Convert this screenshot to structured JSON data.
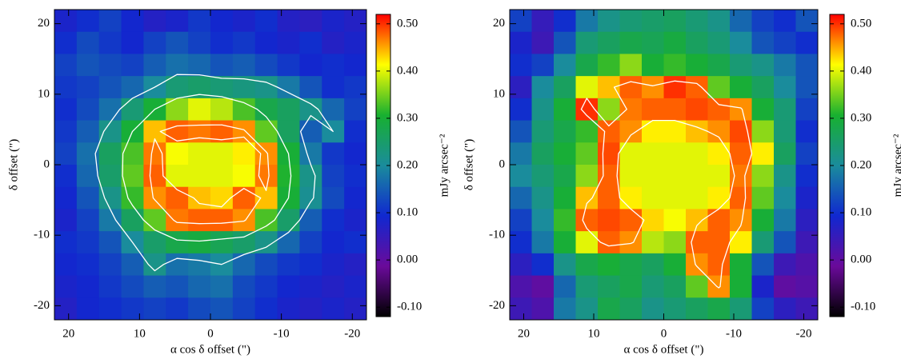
{
  "chart_data": [
    {
      "type": "heatmap",
      "xlabel": "α cos δ offset (\")",
      "ylabel": "δ offset (\")",
      "xlim": [
        22,
        -22
      ],
      "ylim": [
        -22,
        22
      ],
      "xticks": [
        20,
        10,
        0,
        -10,
        -20
      ],
      "yticks": [
        -20,
        -10,
        0,
        10,
        20
      ],
      "zlim": [
        -0.12,
        0.52
      ],
      "colormap": [
        "#000000",
        "#6a0a9a",
        "#1028d0",
        "#1a8c9c",
        "#18b030",
        "#ffff00",
        "#ff0000"
      ],
      "colorbar_label": "mJy arcsec⁻²",
      "colorbar_ticks": [
        {
          "value": -0.1,
          "label": "-0.10"
        },
        {
          "value": 0,
          "label": "0.00"
        },
        {
          "value": 0.1,
          "label": "0.10"
        },
        {
          "value": 0.2,
          "label": "0.20"
        },
        {
          "value": 0.3,
          "label": "0.30"
        },
        {
          "value": 0.4,
          "label": "0.40"
        },
        {
          "value": 0.5,
          "label": "0.50"
        }
      ],
      "contour_levels": [
        0.2,
        0.3,
        0.45
      ],
      "contour_color": "#ffffff",
      "z": [
        [
          0.08,
          0.1,
          0.12,
          0.09,
          0.07,
          0.08,
          0.11,
          0.09,
          0.08,
          0.1,
          0.07,
          0.06,
          0.08,
          0.07
        ],
        [
          0.1,
          0.13,
          0.11,
          0.09,
          0.12,
          0.14,
          0.12,
          0.1,
          0.11,
          0.09,
          0.08,
          0.1,
          0.07,
          0.08
        ],
        [
          0.12,
          0.14,
          0.13,
          0.12,
          0.15,
          0.17,
          0.16,
          0.14,
          0.15,
          0.13,
          0.11,
          0.09,
          0.1,
          0.09
        ],
        [
          0.11,
          0.12,
          0.14,
          0.16,
          0.2,
          0.24,
          0.25,
          0.24,
          0.23,
          0.22,
          0.18,
          0.14,
          0.1,
          0.11
        ],
        [
          0.1,
          0.13,
          0.17,
          0.24,
          0.3,
          0.36,
          0.4,
          0.38,
          0.33,
          0.28,
          0.26,
          0.22,
          0.16,
          0.12
        ],
        [
          0.11,
          0.15,
          0.22,
          0.3,
          0.44,
          0.48,
          0.47,
          0.48,
          0.46,
          0.34,
          0.26,
          0.15,
          0.2,
          0.1
        ],
        [
          0.12,
          0.17,
          0.26,
          0.33,
          0.47,
          0.41,
          0.4,
          0.4,
          0.42,
          0.46,
          0.3,
          0.18,
          0.11,
          0.09
        ],
        [
          0.1,
          0.16,
          0.25,
          0.34,
          0.48,
          0.4,
          0.4,
          0.4,
          0.41,
          0.47,
          0.31,
          0.22,
          0.12,
          0.1
        ],
        [
          0.09,
          0.14,
          0.22,
          0.32,
          0.46,
          0.48,
          0.44,
          0.43,
          0.48,
          0.44,
          0.3,
          0.21,
          0.13,
          0.09
        ],
        [
          0.08,
          0.12,
          0.18,
          0.26,
          0.34,
          0.47,
          0.48,
          0.48,
          0.46,
          0.33,
          0.25,
          0.15,
          0.1,
          0.08
        ],
        [
          0.1,
          0.11,
          0.14,
          0.2,
          0.25,
          0.28,
          0.29,
          0.27,
          0.25,
          0.22,
          0.16,
          0.12,
          0.09,
          0.1
        ],
        [
          0.09,
          0.1,
          0.12,
          0.15,
          0.22,
          0.17,
          0.18,
          0.2,
          0.16,
          0.13,
          0.11,
          0.1,
          0.08,
          0.07
        ],
        [
          0.08,
          0.09,
          0.11,
          0.13,
          0.15,
          0.14,
          0.16,
          0.17,
          0.13,
          0.11,
          0.09,
          0.08,
          0.07,
          0.08
        ],
        [
          0.07,
          0.09,
          0.1,
          0.11,
          0.12,
          0.11,
          0.13,
          0.14,
          0.12,
          0.1,
          0.08,
          0.07,
          0.08,
          0.07
        ]
      ]
    },
    {
      "type": "heatmap",
      "xlabel": "α cos δ offset (\")",
      "ylabel": "δ offset (\")",
      "xlim": [
        22,
        -22
      ],
      "ylim": [
        -22,
        22
      ],
      "xticks": [
        20,
        10,
        0,
        -10,
        -20
      ],
      "yticks": [
        -20,
        -10,
        0,
        10,
        20
      ],
      "zlim": [
        -0.12,
        0.52
      ],
      "colormap": [
        "#000000",
        "#6a0a9a",
        "#1028d0",
        "#1a8c9c",
        "#18b030",
        "#ffff00",
        "#ff0000"
      ],
      "colorbar_label": "mJy arcsec⁻²",
      "colorbar_ticks": [
        {
          "value": -0.1,
          "label": "-0.10"
        },
        {
          "value": 0,
          "label": "0.00"
        },
        {
          "value": 0.1,
          "label": "0.10"
        },
        {
          "value": 0.2,
          "label": "0.20"
        },
        {
          "value": 0.3,
          "label": "0.30"
        },
        {
          "value": 0.4,
          "label": "0.40"
        },
        {
          "value": 0.5,
          "label": "0.50"
        }
      ],
      "contour_levels": [
        0.45
      ],
      "contour_color": "#ffffff",
      "z": [
        [
          0.12,
          0.05,
          0.1,
          0.18,
          0.22,
          0.24,
          0.25,
          0.26,
          0.24,
          0.22,
          0.16,
          0.12,
          0.1,
          0.14
        ],
        [
          0.08,
          0.04,
          0.14,
          0.24,
          0.26,
          0.28,
          0.27,
          0.29,
          0.26,
          0.24,
          0.2,
          0.14,
          0.12,
          0.1
        ],
        [
          0.1,
          0.12,
          0.2,
          0.28,
          0.32,
          0.36,
          0.3,
          0.32,
          0.3,
          0.28,
          0.24,
          0.22,
          0.18,
          0.14
        ],
        [
          0.06,
          0.2,
          0.26,
          0.4,
          0.44,
          0.48,
          0.46,
          0.5,
          0.48,
          0.34,
          0.3,
          0.26,
          0.2,
          0.14
        ],
        [
          0.1,
          0.22,
          0.3,
          0.5,
          0.36,
          0.47,
          0.48,
          0.48,
          0.49,
          0.48,
          0.46,
          0.3,
          0.24,
          0.12
        ],
        [
          0.14,
          0.24,
          0.28,
          0.32,
          0.48,
          0.46,
          0.42,
          0.42,
          0.44,
          0.46,
          0.49,
          0.36,
          0.24,
          0.1
        ],
        [
          0.18,
          0.26,
          0.3,
          0.34,
          0.49,
          0.4,
          0.4,
          0.4,
          0.4,
          0.42,
          0.48,
          0.42,
          0.26,
          0.12
        ],
        [
          0.2,
          0.24,
          0.28,
          0.36,
          0.48,
          0.4,
          0.4,
          0.4,
          0.4,
          0.4,
          0.47,
          0.36,
          0.22,
          0.1
        ],
        [
          0.16,
          0.22,
          0.3,
          0.44,
          0.48,
          0.42,
          0.4,
          0.4,
          0.4,
          0.42,
          0.48,
          0.34,
          0.2,
          0.08
        ],
        [
          0.12,
          0.2,
          0.32,
          0.48,
          0.49,
          0.48,
          0.43,
          0.41,
          0.44,
          0.48,
          0.46,
          0.3,
          0.18,
          0.06
        ],
        [
          0.1,
          0.18,
          0.3,
          0.4,
          0.48,
          0.46,
          0.38,
          0.36,
          0.48,
          0.48,
          0.42,
          0.24,
          0.14,
          0.04
        ],
        [
          0.06,
          0.1,
          0.22,
          0.28,
          0.3,
          0.28,
          0.26,
          0.3,
          0.46,
          0.48,
          0.3,
          0.14,
          0.04,
          0.02
        ],
        [
          0.02,
          0.0,
          0.16,
          0.24,
          0.26,
          0.28,
          0.24,
          0.26,
          0.34,
          0.46,
          0.3,
          0.08,
          0.0,
          0.01
        ],
        [
          0.04,
          0.02,
          0.18,
          0.22,
          0.28,
          0.26,
          0.22,
          0.24,
          0.26,
          0.28,
          0.24,
          0.12,
          0.06,
          0.04
        ]
      ]
    }
  ]
}
